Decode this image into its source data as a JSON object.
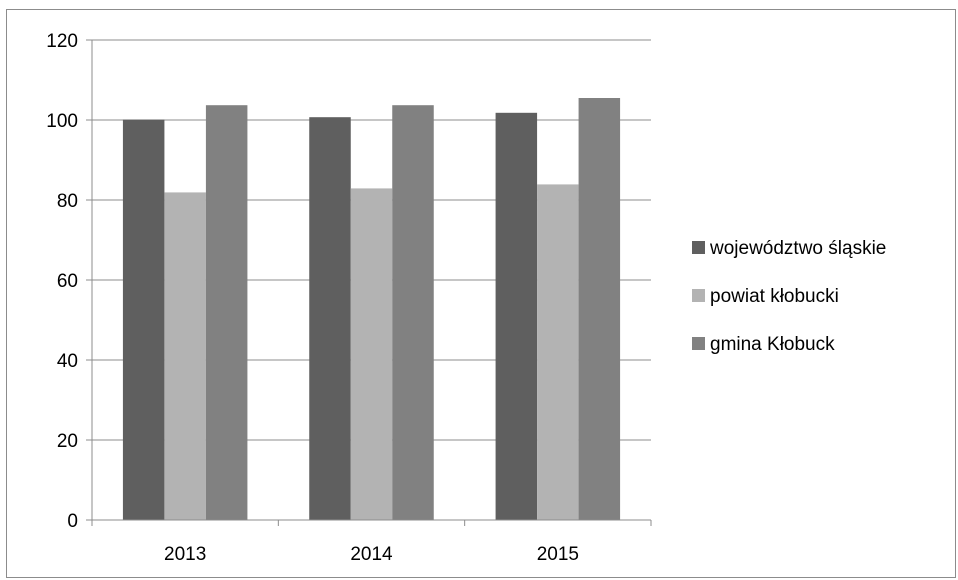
{
  "chart_data": {
    "type": "bar",
    "title": "",
    "xlabel": "",
    "ylabel": "",
    "categories": [
      "2013",
      "2014",
      "2015"
    ],
    "series": [
      {
        "name": "województwo śląskie",
        "values": [
          100.1,
          100.7,
          101.8
        ],
        "color": "#5f5f5f"
      },
      {
        "name": "powiat kłobucki",
        "values": [
          81.9,
          82.9,
          83.9
        ],
        "color": "#b3b3b3"
      },
      {
        "name": "gmina Kłobuck",
        "values": [
          103.7,
          103.7,
          105.5
        ],
        "color": "#818181"
      }
    ],
    "ylim": [
      0,
      120
    ],
    "yticks": [
      "0",
      "20",
      "40",
      "60",
      "80",
      "100",
      "120"
    ],
    "grid": true,
    "legend_position": "right"
  }
}
